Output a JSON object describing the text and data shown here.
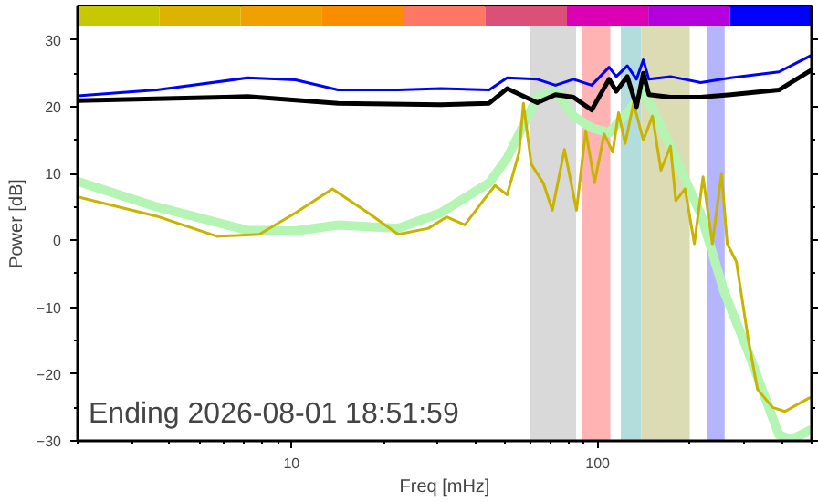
{
  "chart_data": {
    "type": "bar",
    "xlabel": "Freq [mHz]",
    "ylabel": "Power [dB]",
    "log": "x",
    "xlim": [
      2,
      500
    ],
    "ylim": [
      -30,
      35
    ],
    "xticks": [
      10,
      100
    ],
    "yticks": [
      -30,
      -20,
      -10,
      0,
      10,
      20,
      30
    ],
    "grid": false,
    "annotations": [
      "Ending 2026-08-01 18:51:59"
    ],
    "bands": [
      {
        "axis": "x",
        "from": 60,
        "to": 85,
        "color": "#d9d9d9"
      },
      {
        "axis": "x",
        "from": 89,
        "to": 110,
        "color": "#ffb3b3"
      },
      {
        "axis": "x",
        "from": 119,
        "to": 139,
        "color": "#b3dcdc"
      },
      {
        "axis": "x",
        "from": 139,
        "to": 200,
        "color": "#dcdcb4"
      },
      {
        "axis": "x",
        "from": 227,
        "to": 260,
        "color": "#b4b4ff"
      }
    ],
    "series": [
      {
        "base": [
          32,
          32,
          32,
          32,
          32,
          32,
          32,
          32,
          32
        ],
        "x": [
          2.72,
          5.02,
          9.27,
          17.1,
          31.6,
          58.4,
          107.8,
          199,
          367.7
        ],
        "values": [
          3,
          3,
          3,
          3,
          3,
          3,
          3,
          3,
          3
        ],
        "colors": [
          "#c8c800",
          "#dcb400",
          "#f0a000",
          "#fa8c00",
          "#ff7864",
          "#dc5078",
          "#dc00b4",
          "#b400dc",
          "#0000ff"
        ]
      },
      {
        "type": "line",
        "color": "#b4f5b4",
        "x": [
          2,
          3.63,
          7.18,
          10.3,
          14.2,
          22.3,
          30.7,
          44.2,
          50.6,
          63.5,
          72.8,
          83.4,
          95.6,
          109,
          125,
          141,
          150,
          173,
          217,
          259,
          311,
          391,
          430,
          500
        ],
        "values": [
          8.8,
          5,
          1.5,
          1.4,
          2.3,
          1.8,
          4.1,
          8.6,
          12.3,
          21.4,
          22.3,
          18.6,
          16.8,
          16.1,
          19.1,
          22.3,
          20,
          14,
          4,
          -7.7,
          -16.8,
          -29.1,
          -29.8,
          -28.3
        ]
      },
      {
        "type": "line",
        "color": "#c8b400",
        "x": [
          2,
          3.63,
          5.71,
          7.85,
          10.3,
          13.6,
          17.8,
          22.3,
          28,
          32.1,
          36.8,
          42.2,
          46.2,
          50.6,
          55.4,
          57.2,
          60.7,
          66.4,
          71.1,
          77.9,
          85.3,
          91.4,
          97.7,
          105,
          112,
          117,
          123,
          131,
          141,
          151,
          161,
          173,
          180,
          193,
          207,
          221,
          237,
          254,
          265,
          284,
          311,
          333,
          373,
          409,
          490,
          500
        ],
        "values": [
          6.5,
          3.6,
          0.6,
          0.9,
          4.1,
          7.7,
          4.1,
          0.9,
          1.8,
          3.5,
          2.3,
          5.9,
          8.2,
          6.8,
          13.2,
          20.5,
          11.4,
          8.6,
          4.5,
          13.6,
          4.5,
          16.4,
          8.6,
          15.9,
          13.2,
          19.1,
          14.5,
          20.5,
          15,
          18.6,
          10.5,
          14.1,
          5.9,
          7.7,
          -0.5,
          9.5,
          -0.5,
          10,
          -0.5,
          -3.2,
          -15,
          -22.3,
          -25,
          -25.6,
          -23.6,
          -23.5
        ]
      },
      {
        "type": "line",
        "color": "#000000",
        "x": [
          2,
          7.18,
          14.2,
          30.7,
          44.2,
          50.6,
          63.5,
          72.8,
          83.4,
          95.6,
          109,
          115,
          125,
          134,
          141,
          147,
          173,
          217,
          272,
          391,
          500
        ],
        "values": [
          20.9,
          21.5,
          20.5,
          20.3,
          20.5,
          22.7,
          20.6,
          21.8,
          21.4,
          19.5,
          24.1,
          22.3,
          24.5,
          20,
          25,
          21.8,
          21.4,
          21.4,
          21.8,
          22.5,
          25.5
        ]
      },
      {
        "type": "line",
        "color": "#0000ff",
        "x": [
          2,
          3.63,
          7.18,
          10.3,
          14.2,
          22.3,
          30.7,
          44.2,
          50.6,
          63.5,
          72.8,
          83.4,
          95.6,
          109,
          115,
          125,
          134,
          141,
          147,
          173,
          217,
          272,
          391,
          500
        ],
        "values": [
          21.6,
          22.5,
          24.3,
          24,
          22.5,
          22.5,
          22.7,
          22.5,
          24.3,
          24.1,
          23.2,
          24.1,
          23.2,
          25.9,
          24.5,
          26.1,
          24.1,
          27,
          24.1,
          24.5,
          23.6,
          24.3,
          25.2,
          27.7
        ]
      }
    ]
  }
}
